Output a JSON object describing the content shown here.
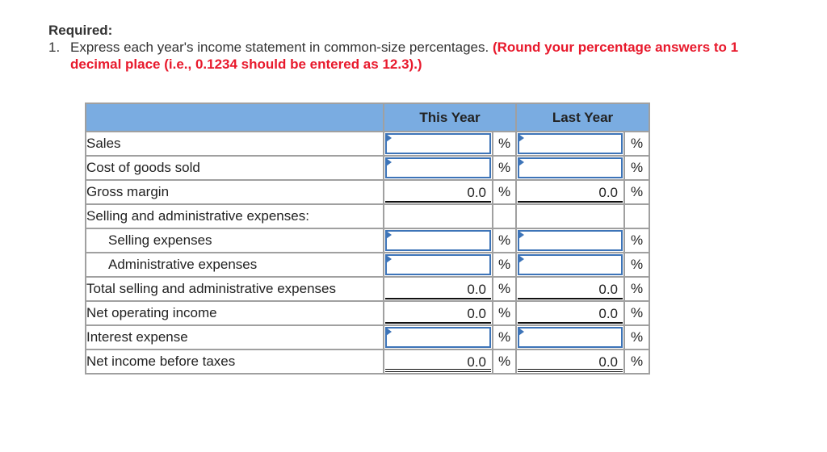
{
  "instructions": {
    "title": "Required:",
    "number": "1.",
    "text": "Express each year's income statement in common-size percentages.",
    "emphasis": "(Round your percentage answers to 1 decimal place (i.e., 0.1234 should be entered as 12.3).)",
    "emphasis_color": "#e8192c"
  },
  "table": {
    "header": {
      "label": "",
      "this_year": "This Year",
      "last_year": "Last Year",
      "background": "#7aace1"
    },
    "rows": [
      {
        "label": "Sales",
        "indent": false,
        "type": "input",
        "this_year": "",
        "last_year": "",
        "unit": "%"
      },
      {
        "label": "Cost of goods sold",
        "indent": false,
        "type": "input",
        "this_year": "",
        "last_year": "",
        "unit": "%"
      },
      {
        "label": "Gross margin",
        "indent": false,
        "type": "calc",
        "this_year": "0.0",
        "last_year": "0.0",
        "unit": "%"
      },
      {
        "label": "Selling and administrative expenses:",
        "indent": false,
        "type": "blank",
        "this_year": "",
        "last_year": "",
        "unit": ""
      },
      {
        "label": "Selling expenses",
        "indent": true,
        "type": "input",
        "this_year": "",
        "last_year": "",
        "unit": "%"
      },
      {
        "label": "Administrative expenses",
        "indent": true,
        "type": "input",
        "this_year": "",
        "last_year": "",
        "unit": "%"
      },
      {
        "label": "Total selling and administrative expenses",
        "indent": false,
        "type": "calc",
        "this_year": "0.0",
        "last_year": "0.0",
        "unit": "%"
      },
      {
        "label": "Net operating income",
        "indent": false,
        "type": "calc",
        "this_year": "0.0",
        "last_year": "0.0",
        "unit": "%"
      },
      {
        "label": "Interest expense",
        "indent": false,
        "type": "input",
        "this_year": "",
        "last_year": "",
        "unit": "%"
      },
      {
        "label": "Net income before taxes",
        "indent": false,
        "type": "calc-final",
        "this_year": "0.0",
        "last_year": "0.0",
        "unit": "%"
      }
    ]
  },
  "colors": {
    "input_border": "#3d74b8",
    "grid": "#a0a0a0"
  }
}
